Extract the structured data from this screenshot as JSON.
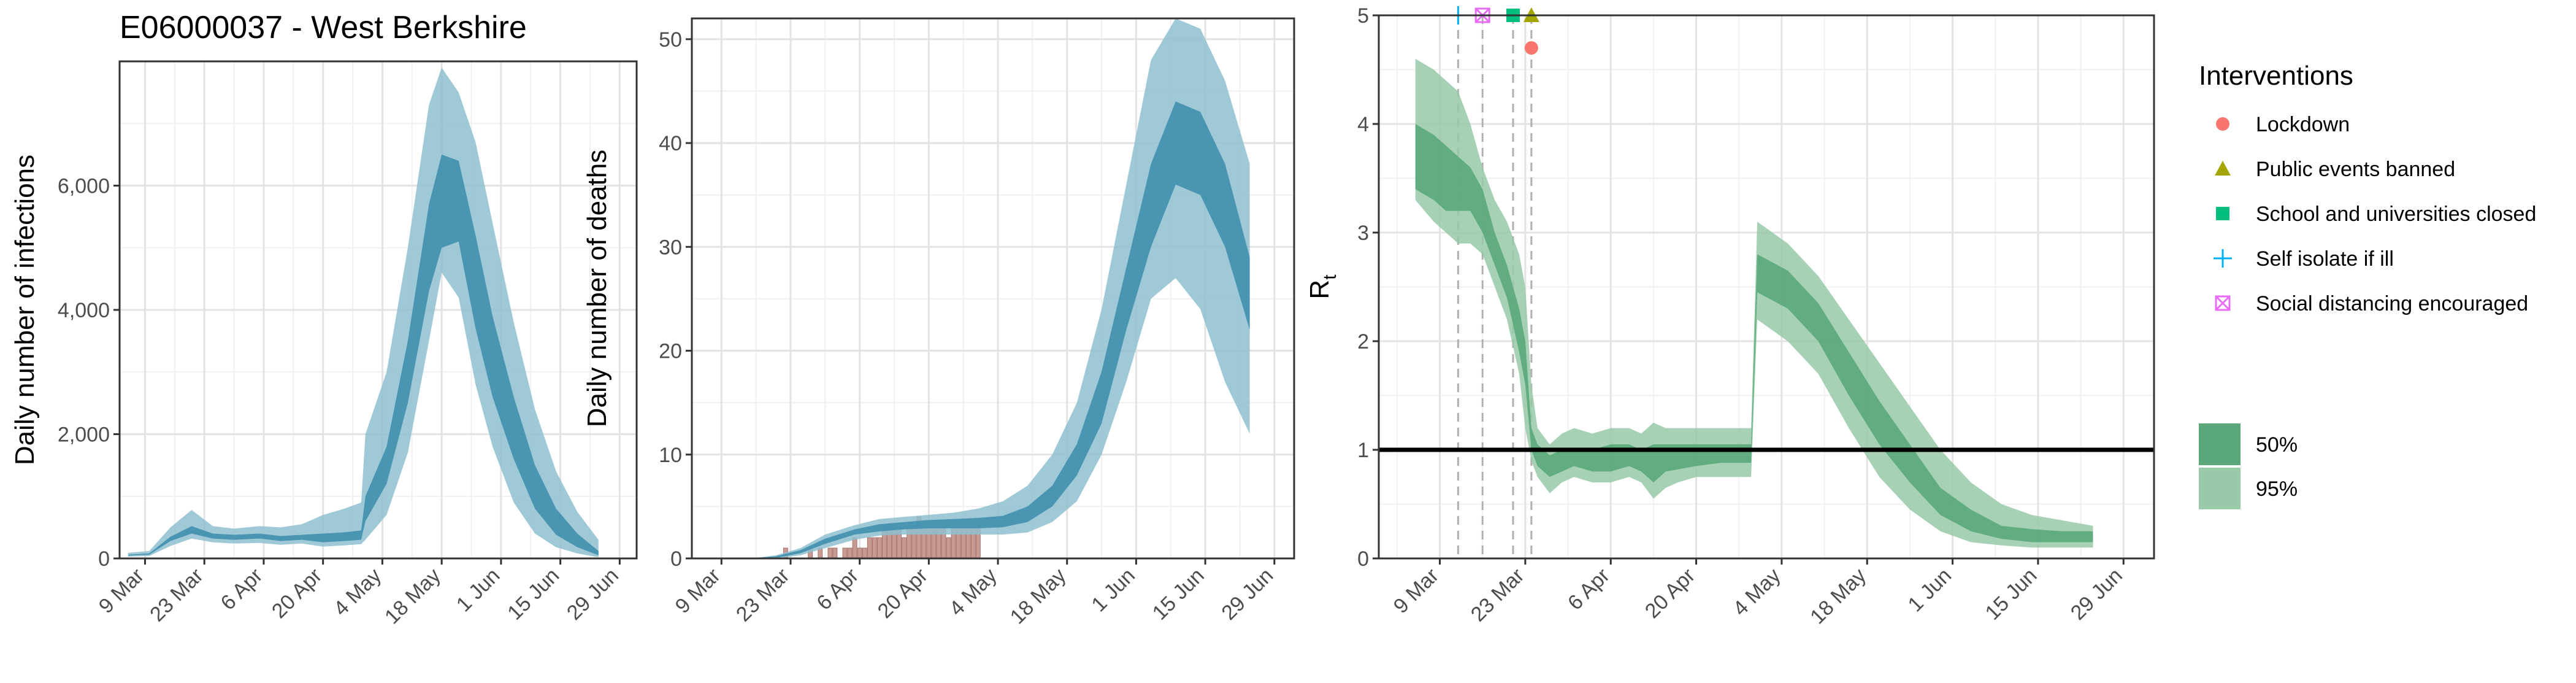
{
  "figure_title": "E06000037 - West Berkshire",
  "colors": {
    "infections_95": "#8fbfd0",
    "infections_50": "#3f8fae",
    "reported_deaths_bars": "#c79a94",
    "rt_95": "#98c9a8",
    "rt_50": "#5aa87a",
    "threshold_line": "#000000",
    "intervention_lines": "#b0b0b0",
    "lockdown": "#f8766d",
    "public_events": "#a3a500",
    "schools": "#00bf7d",
    "self_isolate": "#00b0f6",
    "social_distancing": "#e76bf3"
  },
  "chart_data": [
    {
      "type": "area",
      "ylabel": "Daily number of infections",
      "xlabel": "",
      "ylim": [
        0,
        8000
      ],
      "y_ticks": [
        "0",
        "2,000",
        "4,000",
        "6,000"
      ],
      "y_tick_values": [
        0,
        2000,
        4000,
        6000
      ],
      "x_ticks": [
        "9 Mar",
        "23 Mar",
        "6 Apr",
        "20 Apr",
        "4 May",
        "18 May",
        "1 Jun",
        "15 Jun",
        "29 Jun"
      ],
      "grid": true,
      "series": [
        {
          "name": "95%",
          "x": [
            "2020-03-05",
            "2020-03-10",
            "2020-03-15",
            "2020-03-20",
            "2020-03-25",
            "2020-03-30",
            "2020-04-05",
            "2020-04-10",
            "2020-04-15",
            "2020-04-20",
            "2020-04-25",
            "2020-04-29",
            "2020-04-30",
            "2020-05-05",
            "2020-05-10",
            "2020-05-15",
            "2020-05-18",
            "2020-05-22",
            "2020-05-26",
            "2020-05-30",
            "2020-06-04",
            "2020-06-09",
            "2020-06-14",
            "2020-06-19",
            "2020-06-24"
          ],
          "upper": [
            90,
            120,
            500,
            780,
            520,
            480,
            520,
            500,
            550,
            700,
            800,
            900,
            2000,
            3000,
            5000,
            7300,
            7900,
            7500,
            6700,
            5400,
            3800,
            2400,
            1400,
            750,
            300
          ],
          "lower": [
            30,
            40,
            200,
            320,
            260,
            240,
            250,
            220,
            240,
            190,
            210,
            230,
            300,
            700,
            1700,
            3500,
            4600,
            4200,
            2800,
            1800,
            900,
            400,
            180,
            80,
            20
          ]
        },
        {
          "name": "50%",
          "x": [
            "2020-03-05",
            "2020-03-10",
            "2020-03-15",
            "2020-03-20",
            "2020-03-25",
            "2020-03-30",
            "2020-04-05",
            "2020-04-10",
            "2020-04-15",
            "2020-04-20",
            "2020-04-25",
            "2020-04-29",
            "2020-04-30",
            "2020-05-05",
            "2020-05-10",
            "2020-05-15",
            "2020-05-18",
            "2020-05-22",
            "2020-05-26",
            "2020-05-30",
            "2020-06-04",
            "2020-06-09",
            "2020-06-14",
            "2020-06-19",
            "2020-06-24"
          ],
          "upper": [
            60,
            80,
            350,
            520,
            400,
            380,
            400,
            360,
            380,
            400,
            420,
            450,
            1000,
            1800,
            3500,
            5700,
            6500,
            6400,
            5200,
            3900,
            2600,
            1500,
            800,
            400,
            120
          ],
          "lower": [
            45,
            60,
            280,
            400,
            320,
            300,
            320,
            280,
            300,
            260,
            280,
            300,
            600,
            1200,
            2500,
            4300,
            5000,
            5100,
            3700,
            2600,
            1600,
            800,
            380,
            180,
            50
          ]
        }
      ]
    },
    {
      "type": "area",
      "ylabel": "Daily number of deaths",
      "xlabel": "",
      "ylim": [
        0,
        52
      ],
      "y_ticks": [
        "0",
        "10",
        "20",
        "30",
        "40",
        "50"
      ],
      "y_tick_values": [
        0,
        10,
        20,
        30,
        40,
        50
      ],
      "x_ticks": [
        "9 Mar",
        "23 Mar",
        "6 Apr",
        "20 Apr",
        "4 May",
        "18 May",
        "1 Jun",
        "15 Jun",
        "29 Jun"
      ],
      "grid": true,
      "reported_deaths": {
        "x": [
          "2020-03-22",
          "2020-03-27",
          "2020-03-28",
          "2020-03-29",
          "2020-03-30",
          "2020-03-31",
          "2020-04-01",
          "2020-04-02",
          "2020-04-03",
          "2020-04-04",
          "2020-04-05",
          "2020-04-06",
          "2020-04-07",
          "2020-04-08",
          "2020-04-09",
          "2020-04-10",
          "2020-04-11",
          "2020-04-12",
          "2020-04-13",
          "2020-04-14",
          "2020-04-15",
          "2020-04-16",
          "2020-04-17",
          "2020-04-18",
          "2020-04-19",
          "2020-04-20",
          "2020-04-21",
          "2020-04-22",
          "2020-04-23",
          "2020-04-24",
          "2020-04-25",
          "2020-04-26",
          "2020-04-27",
          "2020-04-28",
          "2020-04-29",
          "2020-04-30"
        ],
        "values": [
          1,
          1,
          0,
          1,
          0,
          1,
          1,
          0,
          1,
          1,
          2,
          1,
          1,
          2,
          2,
          2,
          3,
          3,
          3,
          3,
          2,
          3,
          3,
          4,
          3,
          3,
          3,
          3,
          3,
          2,
          3,
          3,
          3,
          3,
          3,
          3
        ]
      },
      "series": [
        {
          "name": "95%",
          "x": [
            "2020-03-05",
            "2020-03-15",
            "2020-03-20",
            "2020-03-25",
            "2020-03-30",
            "2020-04-05",
            "2020-04-10",
            "2020-04-15",
            "2020-04-20",
            "2020-04-25",
            "2020-04-30",
            "2020-05-05",
            "2020-05-10",
            "2020-05-15",
            "2020-05-20",
            "2020-05-25",
            "2020-05-30",
            "2020-06-04",
            "2020-06-09",
            "2020-06-14",
            "2020-06-19",
            "2020-06-24"
          ],
          "upper": [
            0,
            0,
            0.3,
            1,
            2.3,
            3.2,
            3.8,
            4.0,
            4.2,
            4.4,
            4.8,
            5.5,
            7,
            10,
            15,
            24,
            36,
            48,
            52,
            51,
            46,
            38
          ],
          "lower": [
            0,
            0,
            0,
            0.3,
            1,
            1.8,
            2.2,
            2.3,
            2.3,
            2.3,
            2.3,
            2.3,
            2.5,
            3.5,
            5.5,
            10,
            17,
            25,
            27,
            24,
            17,
            12
          ]
        },
        {
          "name": "50%",
          "x": [
            "2020-03-05",
            "2020-03-15",
            "2020-03-20",
            "2020-03-25",
            "2020-03-30",
            "2020-04-05",
            "2020-04-10",
            "2020-04-15",
            "2020-04-20",
            "2020-04-25",
            "2020-04-30",
            "2020-05-05",
            "2020-05-10",
            "2020-05-15",
            "2020-05-20",
            "2020-05-25",
            "2020-05-30",
            "2020-06-04",
            "2020-06-09",
            "2020-06-14",
            "2020-06-19",
            "2020-06-24"
          ],
          "upper": [
            0,
            0,
            0.2,
            0.8,
            1.9,
            2.8,
            3.3,
            3.5,
            3.7,
            3.8,
            3.9,
            4.1,
            5,
            7,
            11,
            18,
            28,
            38,
            44,
            43,
            38,
            29
          ],
          "lower": [
            0,
            0,
            0.05,
            0.5,
            1.4,
            2.3,
            2.6,
            2.8,
            2.9,
            2.9,
            2.9,
            3.0,
            3.5,
            5,
            8,
            13,
            22,
            30,
            36,
            35,
            30,
            22
          ]
        }
      ]
    },
    {
      "type": "area",
      "ylabel": "R",
      "ylabel_subscript": "t",
      "xlabel": "",
      "ylim": [
        0,
        5
      ],
      "y_ticks": [
        "0",
        "1",
        "2",
        "3",
        "4",
        "5"
      ],
      "y_tick_values": [
        0,
        1,
        2,
        3,
        4,
        5
      ],
      "x_ticks": [
        "9 Mar",
        "23 Mar",
        "6 Apr",
        "20 Apr",
        "4 May",
        "18 May",
        "1 Jun",
        "15 Jun",
        "29 Jun"
      ],
      "grid": true,
      "reference_line": 1,
      "interventions": [
        {
          "name": "Self isolate if ill",
          "date": "2020-03-12",
          "y": 5,
          "shape": "plus"
        },
        {
          "name": "Social distancing encouraged",
          "date": "2020-03-16",
          "y": 5,
          "shape": "boxcross"
        },
        {
          "name": "School and universities closed",
          "date": "2020-03-21",
          "y": 5,
          "shape": "square"
        },
        {
          "name": "Public events banned",
          "date": "2020-03-24",
          "y": 5,
          "shape": "triangle"
        },
        {
          "name": "Lockdown",
          "date": "2020-03-24",
          "y": 4.7,
          "shape": "circle"
        }
      ],
      "series": [
        {
          "name": "95%",
          "x": [
            "2020-03-05",
            "2020-03-08",
            "2020-03-10",
            "2020-03-12",
            "2020-03-14",
            "2020-03-16",
            "2020-03-18",
            "2020-03-20",
            "2020-03-22",
            "2020-03-23",
            "2020-03-24",
            "2020-03-25",
            "2020-03-27",
            "2020-03-29",
            "2020-03-31",
            "2020-04-03",
            "2020-04-06",
            "2020-04-09",
            "2020-04-11",
            "2020-04-13",
            "2020-04-15",
            "2020-04-17",
            "2020-04-20",
            "2020-04-24",
            "2020-04-28",
            "2020-04-29",
            "2020-04-30",
            "2020-05-05",
            "2020-05-10",
            "2020-05-15",
            "2020-05-20",
            "2020-05-25",
            "2020-05-30",
            "2020-06-04",
            "2020-06-09",
            "2020-06-14",
            "2020-06-19",
            "2020-06-24"
          ],
          "upper": [
            4.6,
            4.5,
            4.4,
            4.3,
            4.0,
            3.6,
            3.3,
            3.1,
            2.8,
            2.5,
            1.6,
            1.2,
            1.05,
            1.15,
            1.2,
            1.15,
            1.2,
            1.2,
            1.15,
            1.25,
            1.2,
            1.2,
            1.2,
            1.2,
            1.2,
            1.2,
            3.1,
            2.9,
            2.6,
            2.2,
            1.8,
            1.4,
            1.0,
            0.7,
            0.5,
            0.4,
            0.35,
            0.3
          ],
          "lower": [
            3.3,
            3.1,
            3.0,
            2.9,
            2.9,
            2.8,
            2.5,
            2.2,
            1.7,
            1.2,
            0.9,
            0.75,
            0.6,
            0.7,
            0.75,
            0.7,
            0.7,
            0.75,
            0.7,
            0.55,
            0.65,
            0.7,
            0.75,
            0.75,
            0.75,
            0.75,
            2.2,
            2.0,
            1.7,
            1.2,
            0.75,
            0.45,
            0.25,
            0.15,
            0.12,
            0.1,
            0.1,
            0.1
          ]
        },
        {
          "name": "50%",
          "x": [
            "2020-03-05",
            "2020-03-08",
            "2020-03-10",
            "2020-03-12",
            "2020-03-14",
            "2020-03-16",
            "2020-03-18",
            "2020-03-20",
            "2020-03-22",
            "2020-03-23",
            "2020-03-24",
            "2020-03-25",
            "2020-03-27",
            "2020-03-29",
            "2020-03-31",
            "2020-04-03",
            "2020-04-06",
            "2020-04-09",
            "2020-04-11",
            "2020-04-13",
            "2020-04-15",
            "2020-04-17",
            "2020-04-20",
            "2020-04-24",
            "2020-04-28",
            "2020-04-29",
            "2020-04-30",
            "2020-05-05",
            "2020-05-10",
            "2020-05-15",
            "2020-05-20",
            "2020-05-25",
            "2020-05-30",
            "2020-06-04",
            "2020-06-09",
            "2020-06-14",
            "2020-06-19",
            "2020-06-24"
          ],
          "upper": [
            4.0,
            3.9,
            3.8,
            3.7,
            3.6,
            3.4,
            3.0,
            2.7,
            2.3,
            2.0,
            1.2,
            1.05,
            0.95,
            1.0,
            1.0,
            1.0,
            1.05,
            1.05,
            1.0,
            1.05,
            1.05,
            1.05,
            1.05,
            1.05,
            1.05,
            1.05,
            2.8,
            2.65,
            2.35,
            1.9,
            1.45,
            1.05,
            0.65,
            0.45,
            0.3,
            0.27,
            0.25,
            0.25
          ],
          "lower": [
            3.4,
            3.3,
            3.2,
            3.2,
            3.2,
            3.0,
            2.7,
            2.4,
            1.9,
            1.6,
            1.0,
            0.85,
            0.75,
            0.8,
            0.85,
            0.8,
            0.8,
            0.85,
            0.8,
            0.7,
            0.8,
            0.82,
            0.85,
            0.88,
            0.88,
            0.88,
            2.45,
            2.3,
            2.0,
            1.5,
            1.05,
            0.7,
            0.4,
            0.25,
            0.18,
            0.15,
            0.15,
            0.15
          ]
        }
      ]
    }
  ],
  "legend": {
    "interventions_title": "Interventions",
    "interventions": [
      {
        "label": "Lockdown",
        "shape": "circle",
        "color": "#f8766d"
      },
      {
        "label": "Public events banned",
        "shape": "triangle",
        "color": "#a3a500"
      },
      {
        "label": "School and universities closed",
        "shape": "square",
        "color": "#00bf7d"
      },
      {
        "label": "Self isolate if ill",
        "shape": "plus",
        "color": "#00b0f6"
      },
      {
        "label": "Social distancing encouraged",
        "shape": "boxcross",
        "color": "#e76bf3"
      }
    ],
    "intervals": [
      {
        "label": "50%",
        "color": "#5aa87a"
      },
      {
        "label": "95%",
        "color": "#98c9a8"
      }
    ]
  }
}
